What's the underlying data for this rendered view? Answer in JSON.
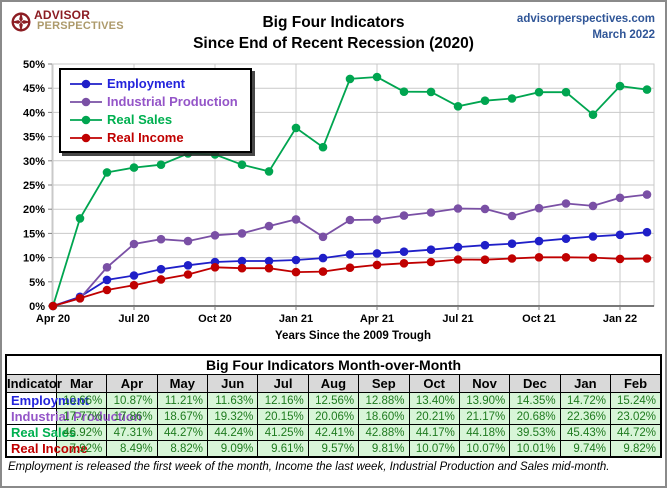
{
  "header": {
    "logo_line1": "ADVISOR",
    "logo_line2": "PERSPECTIVES",
    "title_line1": "Big Four Indicators",
    "title_line2": "Since End of Recent Recession (2020)",
    "site": "advisorperspectives.com",
    "date": "March 2022"
  },
  "colors": {
    "header_blue": "#2f5597",
    "logo_red": "#8c1d23",
    "logo_tan": "#ad9a6b",
    "gridline": "#c9c9c9",
    "axis": "#7f7f7f",
    "table_value_bg": "#d8f5d8",
    "table_value_text": "#1e7a1e",
    "table_header_bg": "#d9d9d9"
  },
  "chart_data": {
    "type": "line",
    "xlabel": "Years Since the 2009 Trough",
    "ylim": [
      0,
      50
    ],
    "y_tick_step": 5,
    "y_tick_labels": [
      "0%",
      "5%",
      "10%",
      "15%",
      "20%",
      "25%",
      "30%",
      "35%",
      "40%",
      "45%",
      "50%"
    ],
    "x_tick_labels": [
      "Apr 20",
      "Jul 20",
      "Oct 20",
      "Jan 21",
      "Apr 21",
      "Jul 21",
      "Oct 21",
      "Jan 22"
    ],
    "x_tick_indices": [
      0,
      3,
      6,
      9,
      12,
      15,
      18,
      21
    ],
    "grid": true,
    "legend_position": "top-left",
    "months": [
      "Apr 2020",
      "May 2020",
      "Jun 2020",
      "Jul 2020",
      "Aug 2020",
      "Sep 2020",
      "Oct 2020",
      "Nov 2020",
      "Dec 2020",
      "Jan 2021",
      "Feb 2021",
      "Mar 2021",
      "Apr 2021",
      "May 2021",
      "Jun 2021",
      "Jul 2021",
      "Aug 2021",
      "Sep 2021",
      "Oct 2021",
      "Nov 2021",
      "Dec 2021",
      "Jan 2022",
      "Feb 2022"
    ],
    "series": [
      {
        "name": "Employment",
        "color": "#1f1fc8",
        "label_color": "#2424dc",
        "values": [
          0,
          1.9,
          5.4,
          6.3,
          7.6,
          8.4,
          9.1,
          9.3,
          9.3,
          9.5,
          9.9,
          10.66,
          10.87,
          11.21,
          11.63,
          12.16,
          12.56,
          12.88,
          13.4,
          13.9,
          14.35,
          14.72,
          15.24
        ]
      },
      {
        "name": "Industrial Production",
        "color": "#7a50a5",
        "label_color": "#9455c8",
        "values": [
          0,
          1.6,
          8.0,
          12.8,
          13.8,
          13.4,
          14.6,
          15.0,
          16.5,
          17.9,
          14.3,
          17.77,
          17.86,
          18.67,
          19.32,
          20.15,
          20.06,
          18.6,
          20.21,
          21.17,
          20.68,
          22.36,
          23.02
        ]
      },
      {
        "name": "Real Sales",
        "color": "#00a550",
        "label_color": "#00b050",
        "values": [
          0,
          18.1,
          27.6,
          28.6,
          29.2,
          31.5,
          31.3,
          29.2,
          27.8,
          36.8,
          32.8,
          46.92,
          47.31,
          44.27,
          44.24,
          41.25,
          42.41,
          42.88,
          44.17,
          44.18,
          39.53,
          45.43,
          44.72
        ]
      },
      {
        "name": "Real Income",
        "color": "#c00000",
        "label_color": "#c00000",
        "values": [
          0,
          1.6,
          3.3,
          4.3,
          5.5,
          6.5,
          8.0,
          7.8,
          7.8,
          7.0,
          7.1,
          7.92,
          8.49,
          8.82,
          9.09,
          9.61,
          9.57,
          9.81,
          10.07,
          10.07,
          10.01,
          9.74,
          9.82
        ]
      }
    ]
  },
  "table": {
    "title": "Big Four Indicators Month-over-Month",
    "columns": [
      "Indicator",
      "Mar",
      "Apr",
      "May",
      "Jun",
      "Jul",
      "Aug",
      "Sep",
      "Oct",
      "Nov",
      "Dec",
      "Jan",
      "Feb"
    ],
    "rows": [
      {
        "label": "Employment",
        "color": "#2424dc",
        "values": [
          "10.66%",
          "10.87%",
          "11.21%",
          "11.63%",
          "12.16%",
          "12.56%",
          "12.88%",
          "13.40%",
          "13.90%",
          "14.35%",
          "14.72%",
          "15.24%"
        ]
      },
      {
        "label": "Industrial Production",
        "color": "#9455c8",
        "values": [
          "17.77%",
          "17.86%",
          "18.67%",
          "19.32%",
          "20.15%",
          "20.06%",
          "18.60%",
          "20.21%",
          "21.17%",
          "20.68%",
          "22.36%",
          "23.02%"
        ]
      },
      {
        "label": "Real Sales",
        "color": "#00b050",
        "values": [
          "46.92%",
          "47.31%",
          "44.27%",
          "44.24%",
          "41.25%",
          "42.41%",
          "42.88%",
          "44.17%",
          "44.18%",
          "39.53%",
          "45.43%",
          "44.72%"
        ]
      },
      {
        "label": "Real Income",
        "color": "#c00000",
        "values": [
          "7.92%",
          "8.49%",
          "8.82%",
          "9.09%",
          "9.61%",
          "9.57%",
          "9.81%",
          "10.07%",
          "10.07%",
          "10.01%",
          "9.74%",
          "9.82%"
        ]
      }
    ],
    "footnote": "Employment is released the first week of the month, Income the last week, Industrial Production and Sales mid-month."
  }
}
